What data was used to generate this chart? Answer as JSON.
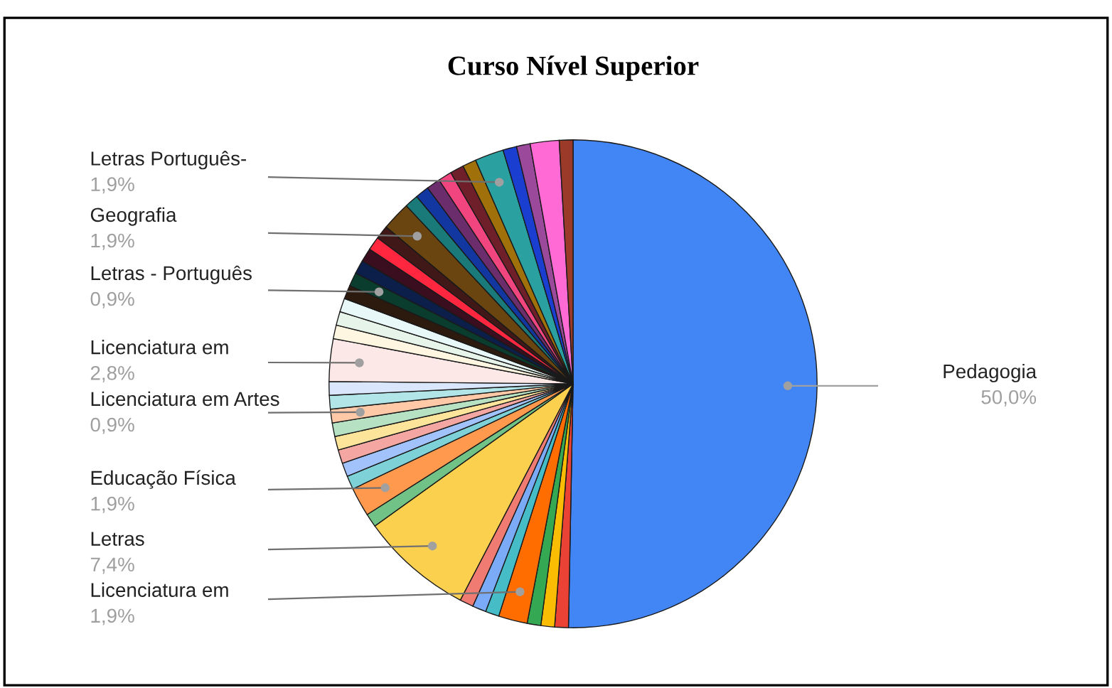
{
  "chart_data": {
    "type": "pie",
    "title": "Curso Nível Superior",
    "categories": [
      "Pedagogia",
      null,
      null,
      null,
      "Licenciatura em",
      null,
      null,
      null,
      "Letras",
      null,
      "Educação Física",
      null,
      null,
      null,
      null,
      null,
      "Licenciatura em Artes",
      null,
      null,
      "Licenciatura em",
      null,
      null,
      null,
      null,
      "Letras - Português",
      null,
      null,
      null,
      null,
      "Geografia",
      null,
      null,
      null,
      null,
      null,
      null,
      "Letras Português-",
      null,
      null,
      null,
      null
    ],
    "values": [
      50.0,
      0.9,
      0.9,
      0.9,
      1.9,
      0.9,
      0.9,
      0.9,
      7.4,
      0.9,
      1.9,
      0.9,
      0.9,
      0.9,
      0.9,
      0.9,
      0.9,
      0.9,
      0.9,
      2.8,
      0.9,
      0.9,
      0.9,
      0.9,
      0.9,
      0.9,
      0.9,
      0.9,
      0.9,
      1.9,
      0.9,
      0.9,
      0.9,
      0.9,
      0.9,
      0.9,
      1.9,
      0.9,
      0.9,
      1.9,
      0.9
    ],
    "value_labels": [
      "50,0%",
      null,
      null,
      null,
      "1,9%",
      null,
      null,
      null,
      "7,4%",
      null,
      "1,9%",
      null,
      null,
      null,
      null,
      null,
      "0,9%",
      null,
      null,
      "2,8%",
      null,
      null,
      null,
      null,
      "0,9%",
      null,
      null,
      null,
      null,
      "1,9%",
      null,
      null,
      null,
      null,
      null,
      null,
      "1,9%",
      null,
      null,
      null,
      null
    ],
    "colors": [
      "#4285f4",
      "#ea4335",
      "#fbbc04",
      "#34a853",
      "#ff6d01",
      "#46bdc6",
      "#7baaf7",
      "#f07b72",
      "#fcd04f",
      "#71c287",
      "#ff994d",
      "#7ed1d7",
      "#a1c2fa",
      "#f4a7a2",
      "#fde49b",
      "#b7e1c3",
      "#ffc8a6",
      "#b2e5e8",
      "#d9e6fc",
      "#fce8e6",
      "#fef6e0",
      "#e6f4ea",
      "#e8f7f8",
      "#2d1a0e",
      "#0b3d2e",
      "#0c1f4a",
      "#3a0d1f",
      "#ff2740",
      "#401818",
      "#6b4510",
      "#1a7a7a",
      "#1237a0",
      "#6b2d6b",
      "#f0457f",
      "#6e1f2a",
      "#a0700a",
      "#2aa0a0",
      "#1a3fd0",
      "#9b4a9b",
      "#ff6ad5",
      "#9c3a2a"
    ]
  }
}
